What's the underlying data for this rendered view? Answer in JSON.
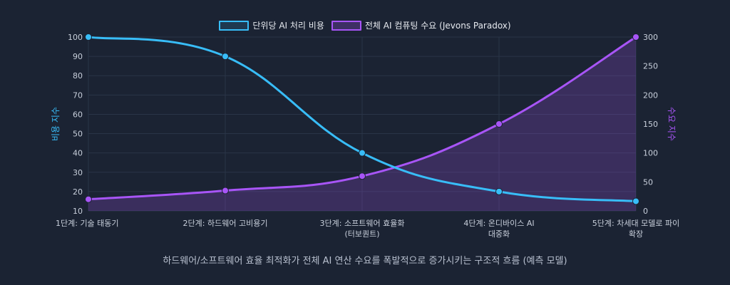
{
  "chart_data": {
    "type": "line",
    "categories": [
      [
        "1단계: 기술 태동기"
      ],
      [
        "2단계: 하드웨어 고비용기"
      ],
      [
        "3단계: 소프트웨어 효율화",
        "(터보퀀트)"
      ],
      [
        "4단계: 온디바이스 AI",
        "대중화"
      ],
      [
        "5단계: 차세대 모델로 파이",
        "확장"
      ]
    ],
    "series": [
      {
        "name": "단위당 AI 처리 비용",
        "axis": "left",
        "values": [
          100,
          90,
          40,
          20,
          15
        ],
        "color": "#38bdf8"
      },
      {
        "name": "전체 AI 컴퓨팅 수요 (Jevons Paradox)",
        "axis": "right",
        "values": [
          20,
          35,
          60,
          150,
          300
        ],
        "color": "#a855f7"
      }
    ],
    "ylabel_left": "비용 지수",
    "ylabel_right": "수요 지수",
    "ylim_left": [
      10,
      100
    ],
    "ylim_right": [
      0,
      300
    ],
    "yticks_left": [
      10,
      20,
      30,
      40,
      50,
      60,
      70,
      80,
      90,
      100
    ],
    "yticks_right": [
      0,
      50,
      100,
      150,
      200,
      250,
      300
    ],
    "grid": true,
    "legend_position": "top-center",
    "caption": "하드웨어/소프트웨어 효율 최적화가 전체 AI 연산 수요를 폭발적으로 증가시키는 구조적 흐름 (예측 모델)"
  }
}
